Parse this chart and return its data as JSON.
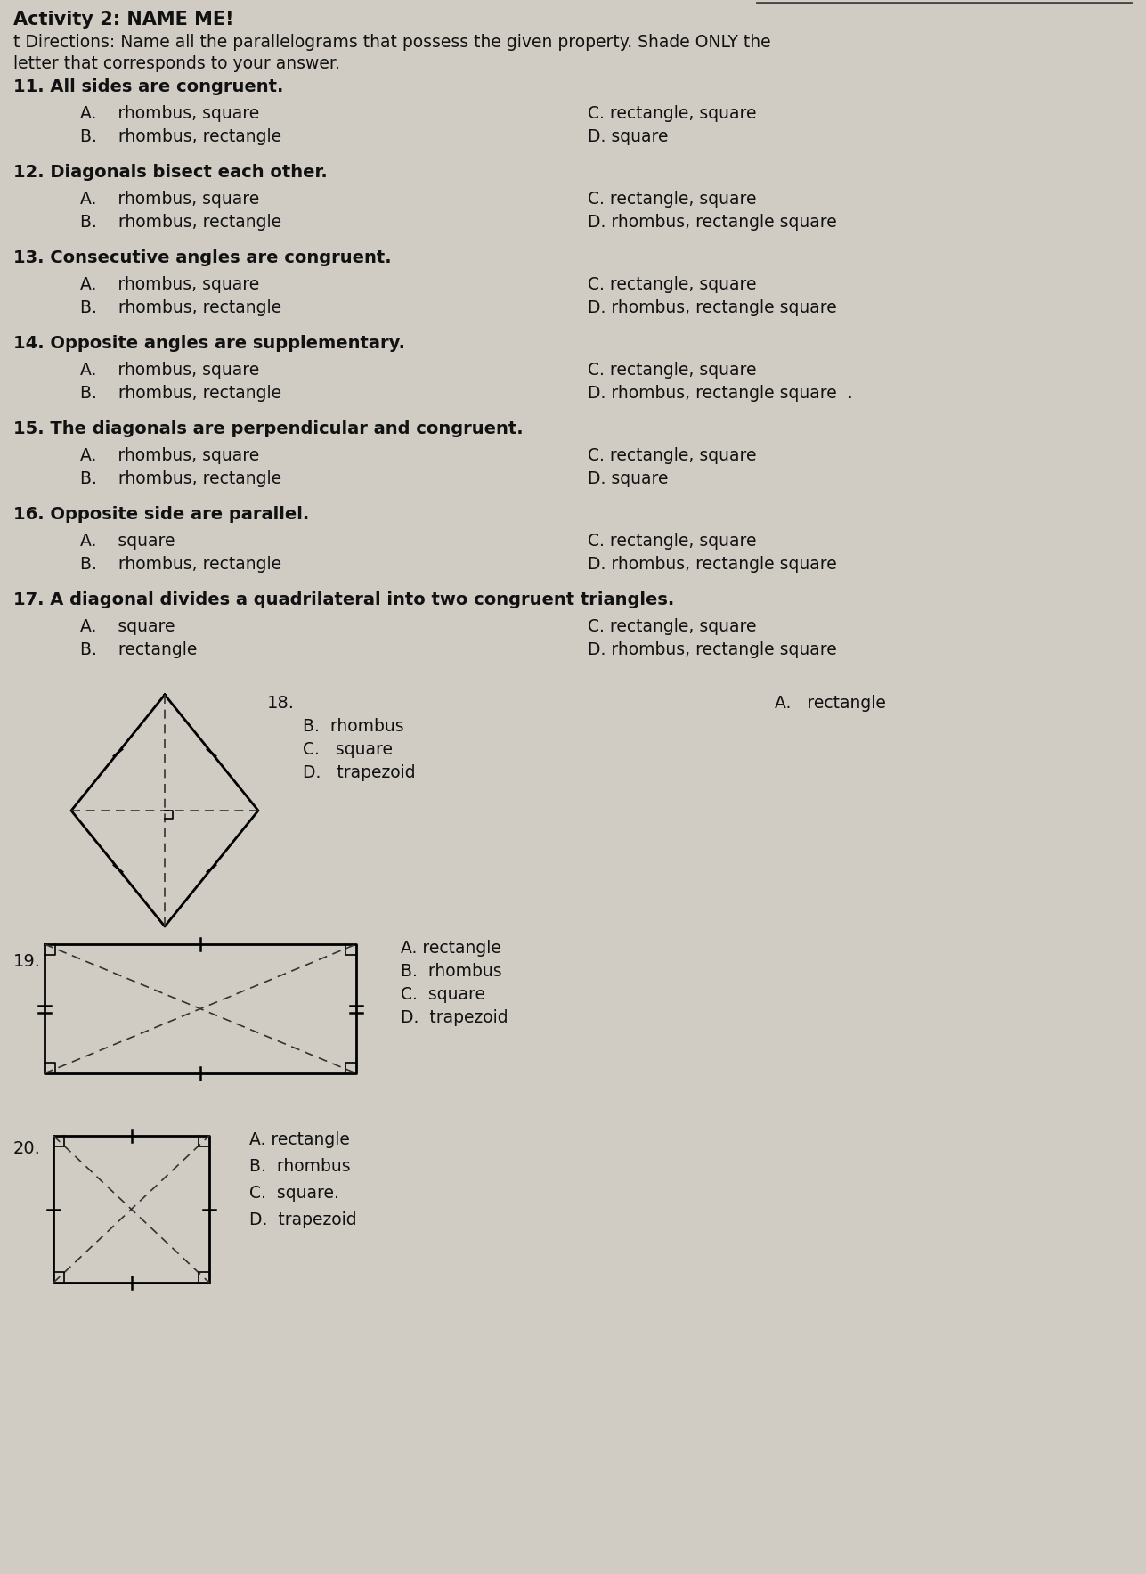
{
  "title": "Activity 2: NAME ME!",
  "dir1": "t Directions: Name all the parallelograms that possess the given property. Shade ONLY the",
  "dir2": "letter that corresponds to your answer.",
  "bg_color": "#d0ccc4",
  "text_color": "#1a1a1a",
  "questions": [
    {
      "num": "11",
      "question": "All sides are congruent.",
      "A": "rhombus, square",
      "B": "rhombus, rectangle",
      "C": "rectangle, square",
      "D": "square"
    },
    {
      "num": "12",
      "question": "Diagonals bisect each other.",
      "A": "rhombus, square",
      "B": "rhombus, rectangle",
      "C": "rectangle, square",
      "D": "rhombus, rectangle square"
    },
    {
      "num": "13",
      "question": "Consecutive angles are congruent.",
      "A": "rhombus, square",
      "B": "rhombus, rectangle",
      "C": "rectangle, square",
      "D": "rhombus, rectangle square"
    },
    {
      "num": "14",
      "question": "Opposite angles are supplementary.",
      "A": "rhombus, square",
      "B": "rhombus, rectangle",
      "C": "rectangle, square",
      "D": "rhombus, rectangle square  ."
    },
    {
      "num": "15",
      "question": "The diagonals are perpendicular and congruent.",
      "A": "rhombus, square",
      "B": "rhombus, rectangle",
      "C": "rectangle, square",
      "D": "square"
    },
    {
      "num": "16",
      "question": "Opposite side are parallel.",
      "A": "square",
      "B": "rhombus, rectangle",
      "C": "rectangle, square",
      "D": "rhombus, rectangle square"
    },
    {
      "num": "17",
      "question": "A diagonal divides a quadrilateral into two congruent triangles.",
      "A": "square",
      "B": "rectangle",
      "C": "rectangle, square",
      "D": "rhombus, rectangle square"
    }
  ]
}
